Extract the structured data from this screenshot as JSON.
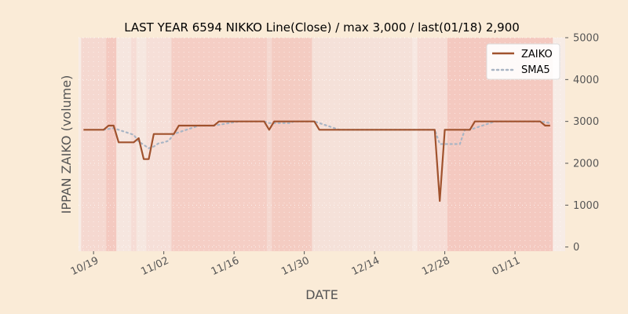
{
  "chart_data": {
    "type": "line",
    "title": "LAST YEAR 6594 NIKKO Line(Close) / max 3,000 / last(01/18) 2,900",
    "xlabel": "DATE",
    "ylabel": "IPPAN ZAIKO (volume)",
    "ylim": [
      -100,
      5000
    ],
    "yticks": [
      0,
      1000,
      2000,
      3000,
      4000,
      5000
    ],
    "ytick_labels": [
      "0",
      "1000",
      "2000",
      "3000",
      "4000",
      "5000"
    ],
    "xlim": [
      "2023-10-16",
      "2024-01-21"
    ],
    "xticks": [
      "2023-10-19",
      "2023-11-02",
      "2023-11-16",
      "2023-11-30",
      "2023-12-14",
      "2023-12-28",
      "2024-01-11"
    ],
    "xtick_labels": [
      "10/19",
      "11/02",
      "11/16",
      "11/30",
      "12/14",
      "12/28",
      "01/11"
    ],
    "legend": "top-right",
    "grid": true,
    "colors": {
      "zaiko": "#a0522d",
      "sma5": "#a9b5c4",
      "band": "#f08070",
      "plot_bg": "#f7ece6",
      "page_bg": "#faebd7",
      "grid": "#ffffff"
    },
    "series": [
      {
        "name": "ZAIKO",
        "x": [
          "2023-10-17",
          "2023-10-18",
          "2023-10-19",
          "2023-10-20",
          "2023-10-21",
          "2023-10-22",
          "2023-10-23",
          "2023-10-24",
          "2023-10-25",
          "2023-10-26",
          "2023-10-27",
          "2023-10-28",
          "2023-10-29",
          "2023-10-30",
          "2023-10-31",
          "2023-11-01",
          "2023-11-02",
          "2023-11-03",
          "2023-11-04",
          "2023-11-05",
          "2023-11-06",
          "2023-11-07",
          "2023-11-08",
          "2023-11-09",
          "2023-11-10",
          "2023-11-11",
          "2023-11-12",
          "2023-11-13",
          "2023-11-14",
          "2023-11-15",
          "2023-11-16",
          "2023-11-17",
          "2023-11-18",
          "2023-11-19",
          "2023-11-20",
          "2023-11-21",
          "2023-11-22",
          "2023-11-23",
          "2023-11-24",
          "2023-11-25",
          "2023-11-26",
          "2023-11-27",
          "2023-11-28",
          "2023-11-29",
          "2023-11-30",
          "2023-12-01",
          "2023-12-02",
          "2023-12-03",
          "2023-12-04",
          "2023-12-05",
          "2023-12-06",
          "2023-12-07",
          "2023-12-08",
          "2023-12-09",
          "2023-12-10",
          "2023-12-11",
          "2023-12-12",
          "2023-12-13",
          "2023-12-14",
          "2023-12-15",
          "2023-12-16",
          "2023-12-17",
          "2023-12-18",
          "2023-12-19",
          "2023-12-20",
          "2023-12-21",
          "2023-12-22",
          "2023-12-23",
          "2023-12-24",
          "2023-12-25",
          "2023-12-26",
          "2023-12-27",
          "2023-12-28",
          "2023-12-29",
          "2023-12-30",
          "2023-12-31",
          "2024-01-01",
          "2024-01-02",
          "2024-01-03",
          "2024-01-04",
          "2024-01-05",
          "2024-01-06",
          "2024-01-07",
          "2024-01-08",
          "2024-01-09",
          "2024-01-10",
          "2024-01-11",
          "2024-01-12",
          "2024-01-13",
          "2024-01-14",
          "2024-01-15",
          "2024-01-16",
          "2024-01-17",
          "2024-01-18"
        ],
        "values": [
          2800,
          2800,
          2800,
          2800,
          2800,
          2900,
          2900,
          2500,
          2500,
          2500,
          2500,
          2600,
          2100,
          2100,
          2700,
          2700,
          2700,
          2700,
          2700,
          2900,
          2900,
          2900,
          2900,
          2900,
          2900,
          2900,
          2900,
          3000,
          3000,
          3000,
          3000,
          3000,
          3000,
          3000,
          3000,
          3000,
          3000,
          2800,
          3000,
          3000,
          3000,
          3000,
          3000,
          3000,
          3000,
          3000,
          3000,
          2800,
          2800,
          2800,
          2800,
          2800,
          2800,
          2800,
          2800,
          2800,
          2800,
          2800,
          2800,
          2800,
          2800,
          2800,
          2800,
          2800,
          2800,
          2800,
          2800,
          2800,
          2800,
          2800,
          2800,
          1100,
          2800,
          2800,
          2800,
          2800,
          2800,
          2800,
          3000,
          3000,
          3000,
          3000,
          3000,
          3000,
          3000,
          3000,
          3000,
          3000,
          3000,
          3000,
          3000,
          3000,
          2900,
          2900
        ]
      },
      {
        "name": "SMA5",
        "x": [
          "2023-10-21",
          "2023-10-22",
          "2023-10-23",
          "2023-10-24",
          "2023-10-25",
          "2023-10-26",
          "2023-10-27",
          "2023-10-28",
          "2023-10-29",
          "2023-10-30",
          "2023-10-31",
          "2023-11-01",
          "2023-11-02",
          "2023-11-03",
          "2023-11-04",
          "2023-11-05",
          "2023-11-06",
          "2023-11-07",
          "2023-11-08",
          "2023-11-09",
          "2023-11-10",
          "2023-11-11",
          "2023-11-12",
          "2023-11-13",
          "2023-11-14",
          "2023-11-15",
          "2023-11-16",
          "2023-11-17",
          "2023-11-18",
          "2023-11-19",
          "2023-11-20",
          "2023-11-21",
          "2023-11-22",
          "2023-11-23",
          "2023-11-24",
          "2023-11-25",
          "2023-11-26",
          "2023-11-27",
          "2023-11-28",
          "2023-11-29",
          "2023-11-30",
          "2023-12-01",
          "2023-12-02",
          "2023-12-03",
          "2023-12-04",
          "2023-12-05",
          "2023-12-06",
          "2023-12-07",
          "2023-12-08",
          "2023-12-09",
          "2023-12-10",
          "2023-12-11",
          "2023-12-12",
          "2023-12-13",
          "2023-12-14",
          "2023-12-15",
          "2023-12-16",
          "2023-12-17",
          "2023-12-18",
          "2023-12-19",
          "2023-12-20",
          "2023-12-21",
          "2023-12-22",
          "2023-12-23",
          "2023-12-24",
          "2023-12-25",
          "2023-12-26",
          "2023-12-27",
          "2023-12-28",
          "2023-12-29",
          "2023-12-30",
          "2023-12-31",
          "2024-01-01",
          "2024-01-02",
          "2024-01-03",
          "2024-01-04",
          "2024-01-05",
          "2024-01-06",
          "2024-01-07",
          "2024-01-08",
          "2024-01-09",
          "2024-01-10",
          "2024-01-11",
          "2024-01-12",
          "2024-01-13",
          "2024-01-14",
          "2024-01-15",
          "2024-01-16",
          "2024-01-17",
          "2024-01-18"
        ],
        "values": [
          2800,
          2820,
          2840,
          2800,
          2760,
          2720,
          2680,
          2520,
          2440,
          2360,
          2400,
          2480,
          2500,
          2540,
          2700,
          2740,
          2780,
          2820,
          2860,
          2900,
          2900,
          2900,
          2900,
          2920,
          2940,
          2960,
          2980,
          3000,
          3000,
          3000,
          3000,
          3000,
          3000,
          2960,
          2960,
          2960,
          2960,
          2960,
          3000,
          3000,
          3000,
          3000,
          3000,
          2960,
          2920,
          2880,
          2840,
          2800,
          2800,
          2800,
          2800,
          2800,
          2800,
          2800,
          2800,
          2800,
          2800,
          2800,
          2800,
          2800,
          2800,
          2800,
          2800,
          2800,
          2800,
          2800,
          2800,
          2460,
          2460,
          2460,
          2460,
          2460,
          2800,
          2800,
          2840,
          2880,
          2920,
          2960,
          3000,
          3000,
          3000,
          3000,
          3000,
          3000,
          3000,
          3000,
          3000,
          3000,
          2980,
          2960
        ]
      }
    ],
    "bands": [
      {
        "start": "2023-10-17",
        "end": "2023-10-22",
        "alpha": 0.18
      },
      {
        "start": "2023-10-22",
        "end": "2023-10-24",
        "alpha": 0.32
      },
      {
        "start": "2023-10-24",
        "end": "2023-10-27",
        "alpha": 0.06
      },
      {
        "start": "2023-10-27",
        "end": "2023-10-28",
        "alpha": 0.14
      },
      {
        "start": "2023-10-28",
        "end": "2023-10-30",
        "alpha": 0.05
      },
      {
        "start": "2023-10-30",
        "end": "2023-11-04",
        "alpha": 0.12
      },
      {
        "start": "2023-11-04",
        "end": "2023-11-23",
        "alpha": 0.28
      },
      {
        "start": "2023-11-23",
        "end": "2023-11-24",
        "alpha": 0.18
      },
      {
        "start": "2023-11-24",
        "end": "2023-12-02",
        "alpha": 0.3
      },
      {
        "start": "2023-12-02",
        "end": "2023-12-22",
        "alpha": 0.1
      },
      {
        "start": "2023-12-22",
        "end": "2023-12-23",
        "alpha": 0.03
      },
      {
        "start": "2023-12-23",
        "end": "2023-12-29",
        "alpha": 0.14
      },
      {
        "start": "2023-12-29",
        "end": "2024-01-19",
        "alpha": 0.32
      }
    ]
  }
}
